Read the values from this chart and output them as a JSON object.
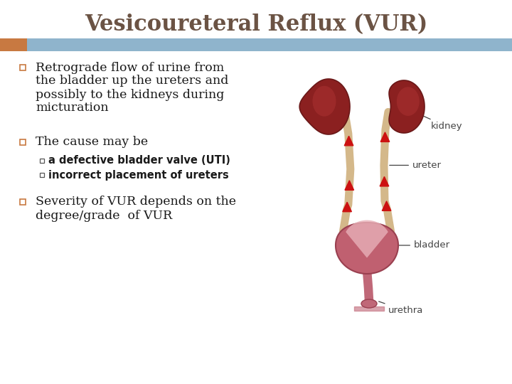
{
  "title": "Vesicoureteral Reflux (VUR)",
  "title_color": "#6b5344",
  "title_fontsize": 22,
  "bg_color": "#ffffff",
  "banner_color": "#8fb4cc",
  "banner_accent_color": "#c87941",
  "text_color": "#1a1a1a",
  "bullet1_lines": [
    "Retrograde flow of urine from",
    "the bladder up the ureters and",
    "possibly to the kidneys during",
    "micturation"
  ],
  "bullet2": "The cause may be",
  "sub_bullet1": "a defective bladder valve (UTI)",
  "sub_bullet2": "incorrect placement of ureters",
  "bullet3_lines": [
    "Severity of VUR depends on the",
    "degree/grade  of VUR"
  ],
  "label_kidney": "kidney",
  "label_ureter": "ureter",
  "label_bladder": "bladder",
  "label_urethra": "urethra",
  "label_color": "#444444",
  "ureter_color": "#d4b88a",
  "kidney_color": "#8b2020",
  "kidney_highlight": "#a83030",
  "bladder_color": "#c06070",
  "bladder_inner": "#d8909a",
  "arrow_color": "#cc1111",
  "urethra_color": "#c06878"
}
